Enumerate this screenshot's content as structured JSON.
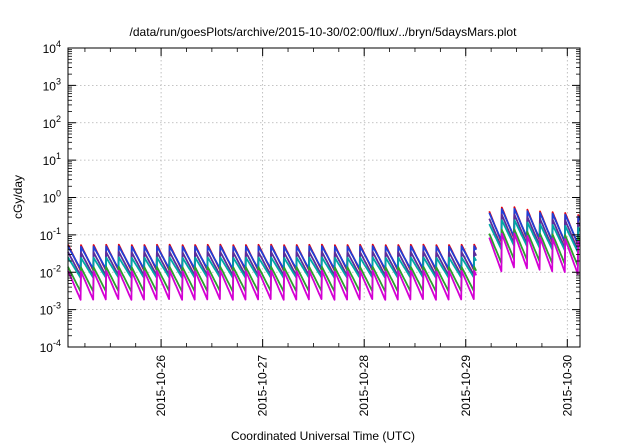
{
  "chart_data": {
    "type": "line",
    "title": "/data/run/goesPlots/archive/2015-10-30/02:00/flux/../bryn/5daysMars.plot",
    "xlabel": "Coordinated Universal Time (UTC)",
    "ylabel": "cGy/day",
    "yscale": "log",
    "ylim": [
      0.0001,
      10000
    ],
    "xlim": [
      "2015-10-25T02:00",
      "2015-10-30T03:00"
    ],
    "grid": true,
    "ytick_labels": [
      {
        "base": "10",
        "exp": "-4"
      },
      {
        "base": "10",
        "exp": "-3"
      },
      {
        "base": "10",
        "exp": "-2"
      },
      {
        "base": "10",
        "exp": "-1"
      },
      {
        "base": "10",
        "exp": "0"
      },
      {
        "base": "10",
        "exp": "1"
      },
      {
        "base": "10",
        "exp": "2"
      },
      {
        "base": "10",
        "exp": "3"
      },
      {
        "base": "10",
        "exp": "4"
      }
    ],
    "xtick_labels": [
      "2015-10-26",
      "2015-10-27",
      "2015-10-28",
      "2015-10-29",
      "2015-10-30"
    ],
    "pattern": {
      "cycles_per_day": 8,
      "gap_start": "2015-10-29T02:30",
      "gap_end": "2015-10-29T05:30",
      "enhancement_start": "2015-10-29T05:30",
      "cycle_peak_multiplier_after": [
        8,
        10,
        10,
        9,
        8,
        7.5,
        7,
        6.5
      ]
    },
    "series": [
      {
        "color": "#e8000b",
        "peak": 0.055,
        "trough": 0.011
      },
      {
        "color": "#1f3fd8",
        "peak": 0.05,
        "trough": 0.012
      },
      {
        "color": "#5a2d9b",
        "peak": 0.035,
        "trough": 0.008
      },
      {
        "color": "#00a6a6",
        "peak": 0.025,
        "trough": 0.007
      },
      {
        "color": "#2ca02c",
        "peak": 0.014,
        "trough": 0.003
      },
      {
        "color": "#d400d4",
        "peak": 0.011,
        "trough": 0.0018
      }
    ]
  }
}
